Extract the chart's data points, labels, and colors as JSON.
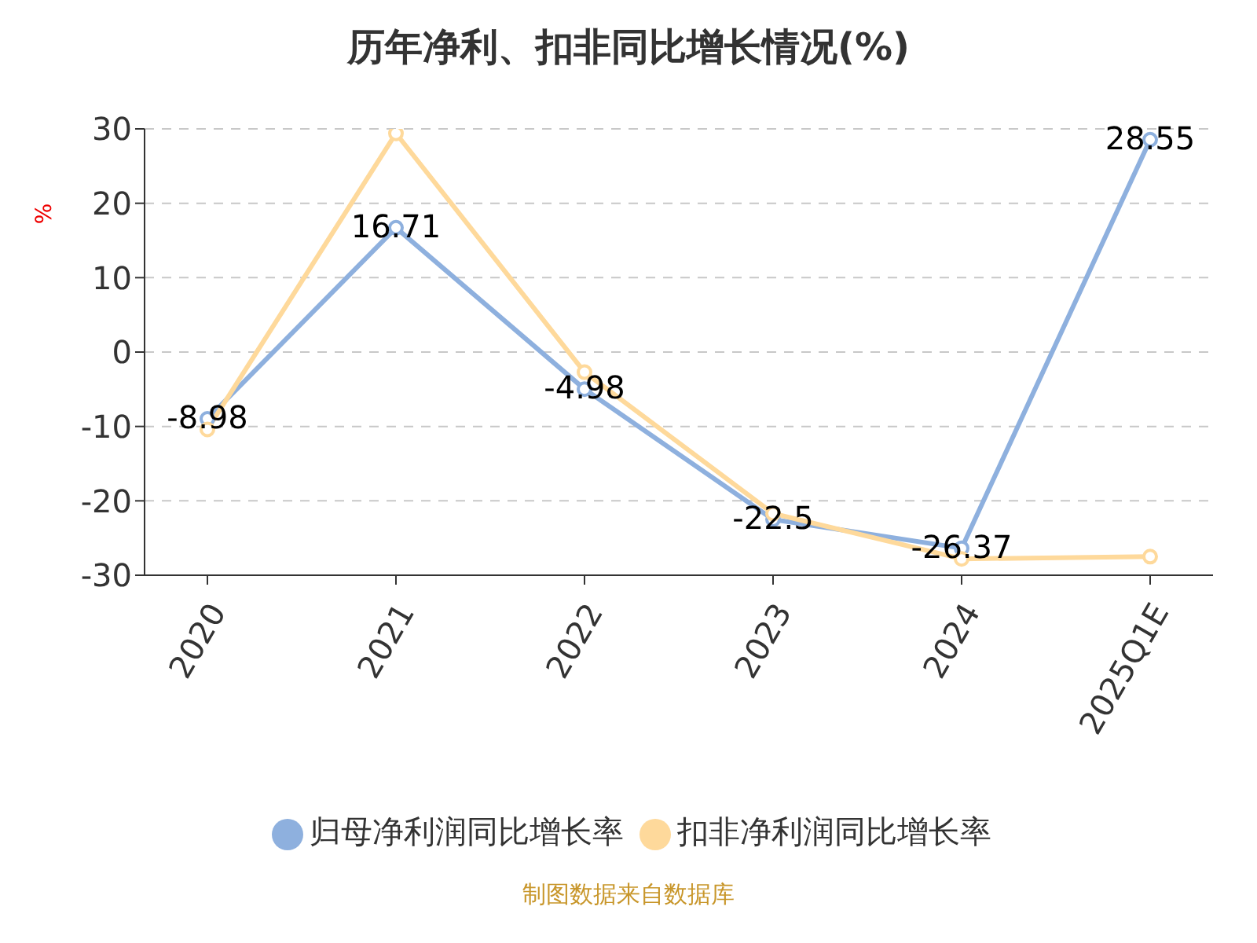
{
  "chart_data": {
    "type": "line",
    "title": "历年净利、扣非同比增长情况(%)",
    "ylabel": "%",
    "categories": [
      "2020",
      "2021",
      "2022",
      "2023",
      "2024",
      "2025Q1E"
    ],
    "series": [
      {
        "name": "归母净利润同比增长率",
        "color": "#8eb0de",
        "values": [
          -8.98,
          16.71,
          -4.98,
          -22.5,
          -26.37,
          28.55
        ],
        "value_labels": [
          "-8.98",
          "16.71",
          "-4.98",
          "-22.5",
          "-26.37",
          "28.55"
        ]
      },
      {
        "name": "扣非净利润同比增长率",
        "color": "#fed99b",
        "values": [
          -10.4,
          29.4,
          -2.7,
          -21.7,
          -27.8,
          -27.5
        ]
      }
    ],
    "ylim": [
      -30,
      30
    ],
    "yticks": [
      -30,
      -20,
      -10,
      0,
      10,
      20,
      30
    ],
    "grid": "y",
    "legend": "bottom",
    "marker": "circle",
    "line_style": "solid",
    "annotations": [
      "制图数据来自数据库"
    ]
  }
}
